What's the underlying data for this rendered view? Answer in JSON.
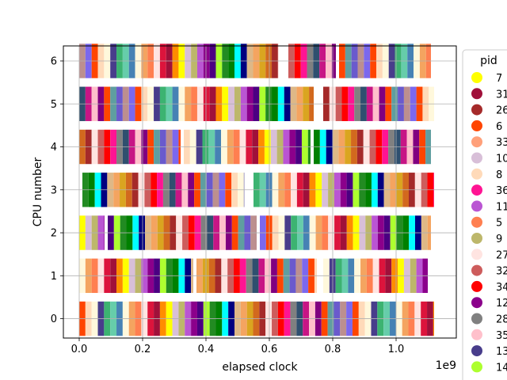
{
  "chart_data": {
    "type": "bar",
    "orientation": "horizontal-timeline",
    "xlabel": "elapsed clock",
    "ylabel": "CPU number",
    "x_offset_text": "1e9",
    "xlim": [
      -0.05,
      1.19
    ],
    "ylim": [
      -0.45,
      6.35
    ],
    "x_ticks": [
      0.0,
      0.2,
      0.4,
      0.6,
      0.8,
      1.0
    ],
    "x_tick_labels": [
      "0.0",
      "0.2",
      "0.4",
      "0.6",
      "0.8",
      "1.0"
    ],
    "y_ticks": [
      0,
      1,
      2,
      3,
      4,
      5,
      6
    ],
    "y_tick_labels": [
      "0",
      "1",
      "2",
      "3",
      "4",
      "5",
      "6"
    ],
    "grid": true,
    "legend": {
      "title": "pid",
      "placement": "right, clipped by figure edge",
      "entries": [
        {
          "label": "7",
          "color": "#ffff00"
        },
        {
          "label": "31",
          "color": "#a0103a"
        },
        {
          "label": "26",
          "color": "#a52a2a"
        },
        {
          "label": "6",
          "color": "#ff4500"
        },
        {
          "label": "33",
          "color": "#ffa07a"
        },
        {
          "label": "10",
          "color": "#d8bfd8"
        },
        {
          "label": "8",
          "color": "#ffdab9"
        },
        {
          "label": "36",
          "color": "#ff1493"
        },
        {
          "label": "11",
          "color": "#ba55d3"
        },
        {
          "label": "5",
          "color": "#ff7f50"
        },
        {
          "label": "9",
          "color": "#bdb76b"
        },
        {
          "label": "27",
          "color": "#ffe4e1"
        },
        {
          "label": "32",
          "color": "#cd5c5c"
        },
        {
          "label": "34",
          "color": "#ff0000"
        },
        {
          "label": "12",
          "color": "#8b008b"
        },
        {
          "label": "28",
          "color": "#808080"
        },
        {
          "label": "35",
          "color": "#ffc0cb"
        },
        {
          "label": "13",
          "color": "#483d8b"
        },
        {
          "label": "14",
          "color": "#adff2f"
        }
      ]
    },
    "palette": [
      "#ff4500",
      "#ffdab9",
      "#fff8dc",
      "#483d8b",
      "#3cb371",
      "#66cdaa",
      "#4682b4",
      "#fff8dc",
      "#f4a460",
      "#ff7f50",
      "#ffe4e1",
      "#dc143c",
      "#a0103a",
      "#ff8c00",
      "#ffff00",
      "#d8bfd8",
      "#bdb76b",
      "#ba55d3",
      "#8b008b",
      "#4b0082",
      "#adff2f",
      "#228b22",
      "#008000",
      "#00ffff",
      "#000080",
      "#deb887",
      "#f4a460",
      "#daa520",
      "#d2691e",
      "#a52a2a",
      "#ffe4e1",
      "#cd5c5c",
      "#ff0000",
      "#ff1493",
      "#808080",
      "#2f4f6f",
      "#c71585",
      "#ffc0cb",
      "#800080",
      "#ff4500",
      "#5f9ea0",
      "#6a5acd",
      "#bc8f8f",
      "#7b68ee"
    ],
    "rows": [
      {
        "cpu": 0,
        "start": 0.0,
        "end": 1.12,
        "gaps": []
      },
      {
        "cpu": 1,
        "start": 0.0,
        "end": 1.1,
        "gaps": [
          [
            0.36,
            0.37
          ],
          [
            0.75,
            0.77
          ]
        ]
      },
      {
        "cpu": 2,
        "start": 0.0,
        "end": 1.11,
        "gaps": [
          [
            0.08,
            0.09
          ],
          [
            0.56,
            0.57
          ]
        ]
      },
      {
        "cpu": 3,
        "start": 0.01,
        "end": 1.12,
        "gaps": [
          [
            0.52,
            0.55
          ]
        ]
      },
      {
        "cpu": 4,
        "start": 0.0,
        "end": 1.11,
        "gaps": [
          [
            0.32,
            0.33
          ],
          [
            0.73,
            0.74
          ]
        ]
      },
      {
        "cpu": 5,
        "start": 0.0,
        "end": 1.12,
        "gaps": [
          [
            0.74,
            0.77
          ]
        ]
      },
      {
        "cpu": 6,
        "start": 0.0,
        "end": 1.11,
        "gaps": [
          [
            0.63,
            0.66
          ],
          [
            0.81,
            0.82
          ]
        ]
      }
    ]
  }
}
